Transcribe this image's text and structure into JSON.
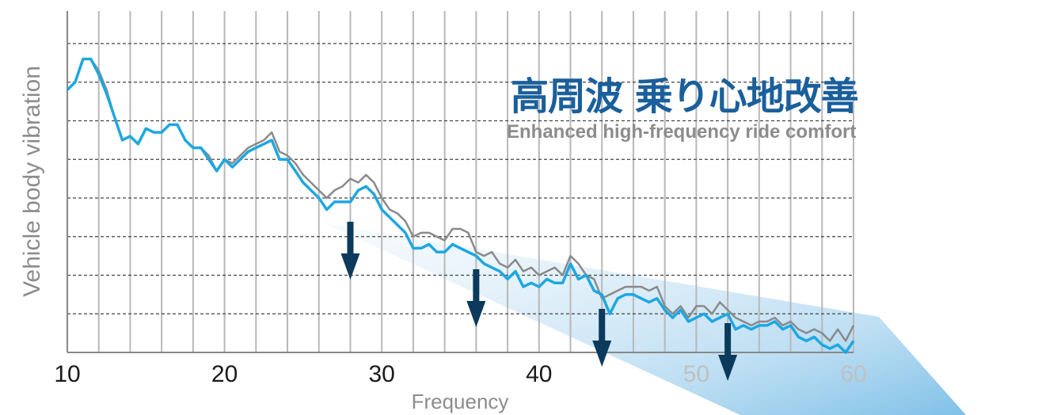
{
  "chart_data": {
    "type": "line",
    "title": "高周波 乗り心地改善",
    "subtitle": "Enhanced high-frequency ride comfort",
    "xlabel": "Frequency",
    "ylabel": "Vehicle body vibration",
    "xlim": [
      10,
      60
    ],
    "ylim": [
      0,
      8
    ],
    "xticks": [
      10,
      20,
      30,
      40,
      50,
      60
    ],
    "grid": true,
    "x": [
      10,
      10.5,
      11,
      11.5,
      12,
      12.5,
      13,
      13.5,
      14,
      14.5,
      15,
      15.5,
      16,
      16.5,
      17,
      17.5,
      18,
      18.5,
      19,
      19.5,
      20,
      20.5,
      21,
      21.5,
      22,
      22.5,
      23,
      23.5,
      24,
      24.5,
      25,
      25.5,
      26,
      26.5,
      27,
      27.5,
      28,
      28.5,
      29,
      29.5,
      30,
      30.5,
      31,
      31.5,
      32,
      32.5,
      33,
      33.5,
      34,
      34.5,
      35,
      35.5,
      36,
      36.5,
      37,
      37.5,
      38,
      38.5,
      39,
      39.5,
      40,
      40.5,
      41,
      41.5,
      42,
      42.5,
      43,
      43.5,
      44,
      44.5,
      45,
      45.5,
      46,
      46.5,
      47,
      47.5,
      48,
      48.5,
      49,
      49.5,
      50,
      50.5,
      51,
      51.5,
      52,
      52.5,
      53,
      53.5,
      54,
      54.5,
      55,
      55.5,
      56,
      56.5,
      57,
      57.5,
      58,
      58.5,
      59,
      59.5,
      60
    ],
    "series": [
      {
        "color": "#8a8a8a",
        "values": [
          6.8,
          7.0,
          7.6,
          7.6,
          7.3,
          6.8,
          6.1,
          5.5,
          5.6,
          5.4,
          5.8,
          5.7,
          5.7,
          5.9,
          5.9,
          5.5,
          5.3,
          5.3,
          5.1,
          4.7,
          5.0,
          4.9,
          5.1,
          5.3,
          5.4,
          5.5,
          5.7,
          5.2,
          5.1,
          4.9,
          4.6,
          4.4,
          4.2,
          4.0,
          4.2,
          4.3,
          4.5,
          4.4,
          4.6,
          4.4,
          4.0,
          3.7,
          3.6,
          3.4,
          3.0,
          3.1,
          3.1,
          3.0,
          2.9,
          3.2,
          3.2,
          3.1,
          2.6,
          2.5,
          2.6,
          2.3,
          2.2,
          2.4,
          2.1,
          2.2,
          2.0,
          2.1,
          2.2,
          2.0,
          2.5,
          2.3,
          2.0,
          1.9,
          1.4,
          1.5,
          1.6,
          1.7,
          1.7,
          1.7,
          1.6,
          1.7,
          1.2,
          1.0,
          1.2,
          0.9,
          1.2,
          1.2,
          1.0,
          1.3,
          1.1,
          0.9,
          0.8,
          0.7,
          0.8,
          0.8,
          0.9,
          0.7,
          0.8,
          0.6,
          0.5,
          0.6,
          0.5,
          0.3,
          0.6,
          0.3,
          0.7
        ]
      },
      {
        "color": "#1ea7e1",
        "values": [
          6.8,
          7.0,
          7.6,
          7.6,
          7.2,
          6.7,
          6.1,
          5.5,
          5.6,
          5.4,
          5.8,
          5.7,
          5.7,
          5.9,
          5.9,
          5.5,
          5.3,
          5.3,
          5.0,
          4.7,
          5.0,
          4.8,
          5.0,
          5.2,
          5.3,
          5.4,
          5.5,
          5.0,
          5.0,
          4.7,
          4.4,
          4.2,
          4.0,
          3.7,
          3.9,
          3.9,
          3.9,
          4.2,
          4.3,
          4.1,
          3.7,
          3.5,
          3.3,
          3.1,
          2.7,
          2.7,
          2.8,
          2.6,
          2.6,
          2.8,
          2.7,
          2.6,
          2.5,
          2.3,
          2.2,
          2.1,
          1.9,
          2.1,
          1.7,
          1.8,
          1.7,
          1.9,
          1.8,
          1.8,
          2.3,
          1.9,
          2.0,
          1.6,
          1.5,
          1.0,
          1.4,
          1.5,
          1.5,
          1.4,
          1.3,
          1.4,
          1.1,
          0.9,
          1.1,
          0.8,
          0.9,
          1.0,
          0.8,
          0.9,
          1.0,
          0.6,
          0.7,
          0.6,
          0.7,
          0.7,
          0.8,
          0.6,
          0.7,
          0.4,
          0.3,
          0.4,
          0.2,
          0.1,
          0.2,
          0.0,
          0.3
        ]
      }
    ]
  }
}
